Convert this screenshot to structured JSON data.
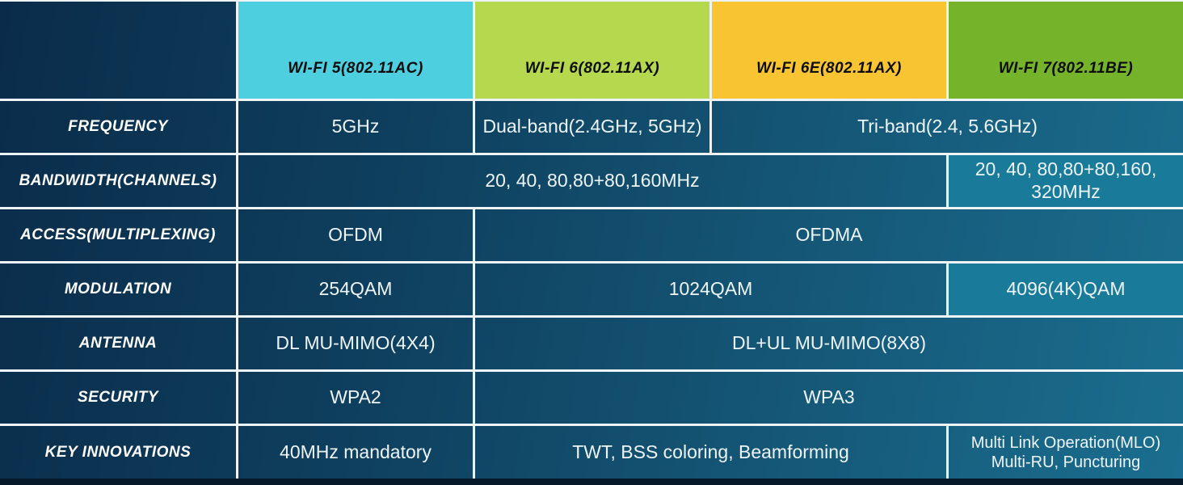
{
  "colors": {
    "wifi5_header": "#4dcfe0",
    "wifi6_header": "#b6d84e",
    "wifi6e_header": "#f9c431",
    "wifi7_header": "#75b42a",
    "grad_a": "#0a2c4a",
    "grad_b": "#0f405f",
    "grad_c": "#1b6e8f",
    "highlight_cell": "#1a7a9a",
    "border": "#eef3f5",
    "page_background": "#06192b",
    "header_text": "#0d0d0d",
    "label_text": "#ffffff",
    "value_text": "#eef5f9"
  },
  "chart_data": {
    "type": "table",
    "columns": [
      {
        "key": "wifi5",
        "label": "WI-FI 5(802.11AC)"
      },
      {
        "key": "wifi6",
        "label": "WI-FI 6(802.11AX)"
      },
      {
        "key": "wifi6e",
        "label": "WI-FI 6E(802.11AX)"
      },
      {
        "key": "wifi7",
        "label": "WI-FI 7(802.11BE)"
      }
    ],
    "rows": [
      {
        "key": "frequency",
        "label": "FREQUENCY",
        "cells": [
          {
            "text": "5GHz",
            "span": 1
          },
          {
            "text": "Dual-band(2.4GHz, 5GHz)",
            "span": 1
          },
          {
            "text": "Tri-band(2.4, 5.6GHz)",
            "span": 2
          }
        ]
      },
      {
        "key": "bandwidth",
        "label": "BANDWIDTH(CHANNELS)",
        "cells": [
          {
            "text": "20, 40, 80,80+80,160MHz",
            "span": 3
          },
          {
            "text": [
              "20, 40, 80,80+80,160,",
              "320MHz"
            ],
            "span": 1,
            "highlight": true
          }
        ]
      },
      {
        "key": "access",
        "label": "ACCESS(MULTIPLEXING)",
        "cells": [
          {
            "text": "OFDM",
            "span": 1
          },
          {
            "text": "OFDMA",
            "span": 3
          }
        ]
      },
      {
        "key": "modulation",
        "label": "MODULATION",
        "cells": [
          {
            "text": "254QAM",
            "span": 1
          },
          {
            "text": "1024QAM",
            "span": 2
          },
          {
            "text": "4096(4K)QAM",
            "span": 1,
            "highlight": true
          }
        ]
      },
      {
        "key": "antenna",
        "label": "ANTENNA",
        "cells": [
          {
            "text": "DL MU-MIMO(4X4)",
            "span": 1
          },
          {
            "text": "DL+UL MU-MIMO(8X8)",
            "span": 3
          }
        ]
      },
      {
        "key": "security",
        "label": "SECURITY",
        "cells": [
          {
            "text": "WPA2",
            "span": 1
          },
          {
            "text": "WPA3",
            "span": 3
          }
        ]
      },
      {
        "key": "key-innovations",
        "label": "KEY INNOVATIONS",
        "cells": [
          {
            "text": "40MHz mandatory",
            "span": 1
          },
          {
            "text": "TWT, BSS coloring, Beamforming",
            "span": 2
          },
          {
            "text": [
              "Multi Link Operation(MLO)",
              "Multi-RU, Puncturing"
            ],
            "span": 1,
            "small": true
          }
        ]
      }
    ]
  }
}
